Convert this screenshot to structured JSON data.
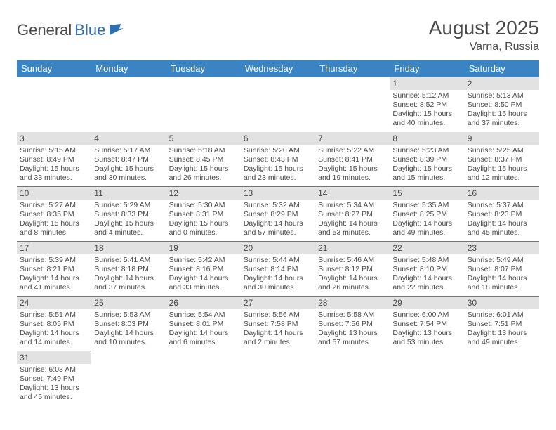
{
  "logo": {
    "text1": "General",
    "text2": "Blue"
  },
  "title": "August 2025",
  "location": "Varna, Russia",
  "colors": {
    "header_bg": "#3b84c4",
    "header_text": "#ffffff",
    "daynum_bg": "#e2e2e2",
    "border": "#3b84c4",
    "text": "#4a4a4a"
  },
  "weekdays": [
    "Sunday",
    "Monday",
    "Tuesday",
    "Wednesday",
    "Thursday",
    "Friday",
    "Saturday"
  ],
  "weeks": [
    [
      null,
      null,
      null,
      null,
      null,
      {
        "n": "1",
        "sunrise": "5:12 AM",
        "sunset": "8:52 PM",
        "dl1": "15 hours",
        "dl2": "and 40 minutes."
      },
      {
        "n": "2",
        "sunrise": "5:13 AM",
        "sunset": "8:50 PM",
        "dl1": "15 hours",
        "dl2": "and 37 minutes."
      }
    ],
    [
      {
        "n": "3",
        "sunrise": "5:15 AM",
        "sunset": "8:49 PM",
        "dl1": "15 hours",
        "dl2": "and 33 minutes."
      },
      {
        "n": "4",
        "sunrise": "5:17 AM",
        "sunset": "8:47 PM",
        "dl1": "15 hours",
        "dl2": "and 30 minutes."
      },
      {
        "n": "5",
        "sunrise": "5:18 AM",
        "sunset": "8:45 PM",
        "dl1": "15 hours",
        "dl2": "and 26 minutes."
      },
      {
        "n": "6",
        "sunrise": "5:20 AM",
        "sunset": "8:43 PM",
        "dl1": "15 hours",
        "dl2": "and 23 minutes."
      },
      {
        "n": "7",
        "sunrise": "5:22 AM",
        "sunset": "8:41 PM",
        "dl1": "15 hours",
        "dl2": "and 19 minutes."
      },
      {
        "n": "8",
        "sunrise": "5:23 AM",
        "sunset": "8:39 PM",
        "dl1": "15 hours",
        "dl2": "and 15 minutes."
      },
      {
        "n": "9",
        "sunrise": "5:25 AM",
        "sunset": "8:37 PM",
        "dl1": "15 hours",
        "dl2": "and 12 minutes."
      }
    ],
    [
      {
        "n": "10",
        "sunrise": "5:27 AM",
        "sunset": "8:35 PM",
        "dl1": "15 hours",
        "dl2": "and 8 minutes."
      },
      {
        "n": "11",
        "sunrise": "5:29 AM",
        "sunset": "8:33 PM",
        "dl1": "15 hours",
        "dl2": "and 4 minutes."
      },
      {
        "n": "12",
        "sunrise": "5:30 AM",
        "sunset": "8:31 PM",
        "dl1": "15 hours",
        "dl2": "and 0 minutes."
      },
      {
        "n": "13",
        "sunrise": "5:32 AM",
        "sunset": "8:29 PM",
        "dl1": "14 hours",
        "dl2": "and 57 minutes."
      },
      {
        "n": "14",
        "sunrise": "5:34 AM",
        "sunset": "8:27 PM",
        "dl1": "14 hours",
        "dl2": "and 53 minutes."
      },
      {
        "n": "15",
        "sunrise": "5:35 AM",
        "sunset": "8:25 PM",
        "dl1": "14 hours",
        "dl2": "and 49 minutes."
      },
      {
        "n": "16",
        "sunrise": "5:37 AM",
        "sunset": "8:23 PM",
        "dl1": "14 hours",
        "dl2": "and 45 minutes."
      }
    ],
    [
      {
        "n": "17",
        "sunrise": "5:39 AM",
        "sunset": "8:21 PM",
        "dl1": "14 hours",
        "dl2": "and 41 minutes."
      },
      {
        "n": "18",
        "sunrise": "5:41 AM",
        "sunset": "8:18 PM",
        "dl1": "14 hours",
        "dl2": "and 37 minutes."
      },
      {
        "n": "19",
        "sunrise": "5:42 AM",
        "sunset": "8:16 PM",
        "dl1": "14 hours",
        "dl2": "and 33 minutes."
      },
      {
        "n": "20",
        "sunrise": "5:44 AM",
        "sunset": "8:14 PM",
        "dl1": "14 hours",
        "dl2": "and 30 minutes."
      },
      {
        "n": "21",
        "sunrise": "5:46 AM",
        "sunset": "8:12 PM",
        "dl1": "14 hours",
        "dl2": "and 26 minutes."
      },
      {
        "n": "22",
        "sunrise": "5:48 AM",
        "sunset": "8:10 PM",
        "dl1": "14 hours",
        "dl2": "and 22 minutes."
      },
      {
        "n": "23",
        "sunrise": "5:49 AM",
        "sunset": "8:07 PM",
        "dl1": "14 hours",
        "dl2": "and 18 minutes."
      }
    ],
    [
      {
        "n": "24",
        "sunrise": "5:51 AM",
        "sunset": "8:05 PM",
        "dl1": "14 hours",
        "dl2": "and 14 minutes."
      },
      {
        "n": "25",
        "sunrise": "5:53 AM",
        "sunset": "8:03 PM",
        "dl1": "14 hours",
        "dl2": "and 10 minutes."
      },
      {
        "n": "26",
        "sunrise": "5:54 AM",
        "sunset": "8:01 PM",
        "dl1": "14 hours",
        "dl2": "and 6 minutes."
      },
      {
        "n": "27",
        "sunrise": "5:56 AM",
        "sunset": "7:58 PM",
        "dl1": "14 hours",
        "dl2": "and 2 minutes."
      },
      {
        "n": "28",
        "sunrise": "5:58 AM",
        "sunset": "7:56 PM",
        "dl1": "13 hours",
        "dl2": "and 57 minutes."
      },
      {
        "n": "29",
        "sunrise": "6:00 AM",
        "sunset": "7:54 PM",
        "dl1": "13 hours",
        "dl2": "and 53 minutes."
      },
      {
        "n": "30",
        "sunrise": "6:01 AM",
        "sunset": "7:51 PM",
        "dl1": "13 hours",
        "dl2": "and 49 minutes."
      }
    ],
    [
      {
        "n": "31",
        "sunrise": "6:03 AM",
        "sunset": "7:49 PM",
        "dl1": "13 hours",
        "dl2": "and 45 minutes."
      },
      null,
      null,
      null,
      null,
      null,
      null
    ]
  ],
  "labels": {
    "sunrise": "Sunrise:",
    "sunset": "Sunset:",
    "daylight": "Daylight:"
  }
}
